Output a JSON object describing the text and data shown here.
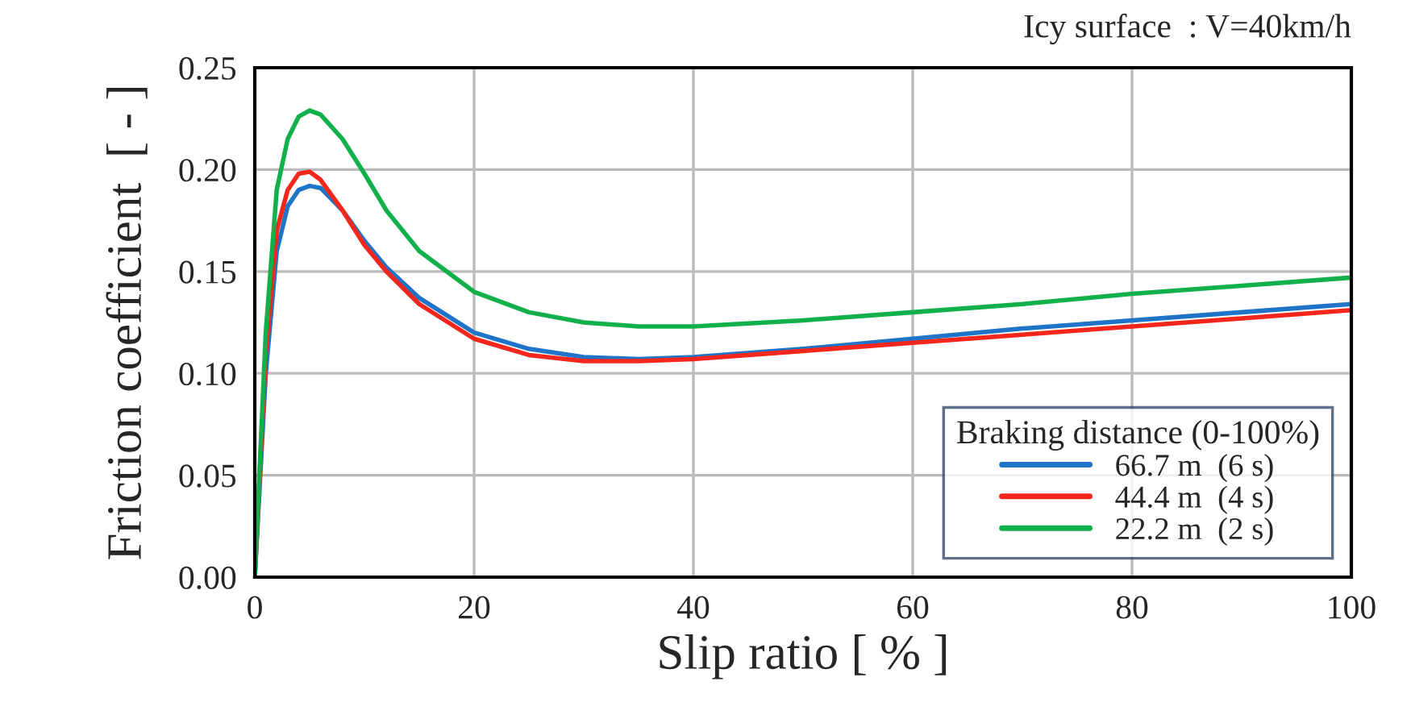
{
  "chart_data": {
    "type": "line",
    "xlabel": "Slip ratio [ % ]",
    "ylabel": "Friction coefficient  [ - ]",
    "legend_title": "Braking distance (0-100%)",
    "annotations": [
      "Icy surface  : V=40km/h"
    ],
    "x": [
      0,
      1,
      2,
      3,
      4,
      5,
      6,
      8,
      10,
      12,
      15,
      20,
      25,
      30,
      35,
      40,
      50,
      60,
      70,
      80,
      90,
      100
    ],
    "series": [
      {
        "name": "66.7 m  (6 s)",
        "color": "#1f74c8",
        "values": [
          0,
          0.1,
          0.16,
          0.182,
          0.19,
          0.192,
          0.191,
          0.18,
          0.165,
          0.152,
          0.137,
          0.12,
          0.112,
          0.108,
          0.107,
          0.108,
          0.112,
          0.117,
          0.122,
          0.126,
          0.13,
          0.134
        ]
      },
      {
        "name": "44.4 m  (4 s)",
        "color": "#f5261c",
        "values": [
          0,
          0.11,
          0.17,
          0.19,
          0.198,
          0.199,
          0.195,
          0.18,
          0.163,
          0.15,
          0.134,
          0.117,
          0.109,
          0.106,
          0.106,
          0.107,
          0.111,
          0.115,
          0.119,
          0.123,
          0.127,
          0.131
        ]
      },
      {
        "name": "22.2 m  (2 s)",
        "color": "#12b04a",
        "values": [
          0,
          0.12,
          0.19,
          0.215,
          0.226,
          0.229,
          0.227,
          0.215,
          0.198,
          0.18,
          0.16,
          0.14,
          0.13,
          0.125,
          0.123,
          0.123,
          0.126,
          0.13,
          0.134,
          0.139,
          0.143,
          0.147
        ]
      }
    ],
    "xlim": [
      0,
      100
    ],
    "xticks": [
      0,
      20,
      40,
      60,
      80,
      100
    ],
    "ylim": [
      0,
      0.25
    ],
    "yticks": [
      {
        "value": 0,
        "label": "0.00"
      },
      {
        "value": 0.05,
        "label": "0.05"
      },
      {
        "value": 0.1,
        "label": "0.10"
      },
      {
        "value": 0.15,
        "label": "0.15"
      },
      {
        "value": 0.2,
        "label": "0.20"
      },
      {
        "value": 0.25,
        "label": "0.25"
      }
    ],
    "grid": true,
    "legend": "bottom right",
    "marker": "none",
    "line_style": "solid"
  }
}
